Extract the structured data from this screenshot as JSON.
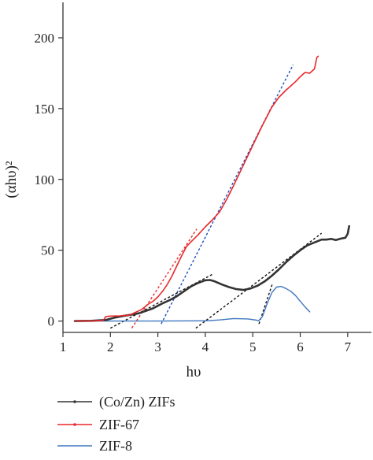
{
  "chart_data": {
    "type": "line",
    "xlabel": "hυ",
    "ylabel": "(αhυ)²",
    "xlim": [
      1,
      7.5
    ],
    "ylim": [
      -8,
      225
    ],
    "xticks": [
      1,
      2,
      3,
      4,
      5,
      6,
      7
    ],
    "yticks": [
      0,
      50,
      100,
      150,
      200
    ],
    "grid": false,
    "legend_position": "bottom-left",
    "series": [
      {
        "name": "(Co/Zn) ZIFs",
        "color": "#333333",
        "x": [
          1.25,
          1.6,
          1.9,
          2.1,
          2.3,
          2.5,
          2.6,
          2.75,
          2.9,
          3.0,
          3.1,
          3.25,
          3.4,
          3.55,
          3.7,
          3.85,
          4.0,
          4.1,
          4.2,
          4.35,
          4.5,
          4.65,
          4.8,
          4.95,
          5.1,
          5.25,
          5.4,
          5.55,
          5.7,
          5.85,
          6.0,
          6.15,
          6.3,
          6.45,
          6.55,
          6.65,
          6.75,
          6.85,
          6.95,
          7.0,
          7.03
        ],
        "y": [
          0,
          0.2,
          0.8,
          2.5,
          3.8,
          4.8,
          5.5,
          7.2,
          9.0,
          10.8,
          12.5,
          14.8,
          17.5,
          21.0,
          24.5,
          27.0,
          28.8,
          29.0,
          28.0,
          25.8,
          24.0,
          22.6,
          22.0,
          23.0,
          25.0,
          28.0,
          32.0,
          36.5,
          41.5,
          46.0,
          50.0,
          53.5,
          55.5,
          57.5,
          57.5,
          58.0,
          57.2,
          58.2,
          58.8,
          61.5,
          67.0
        ]
      },
      {
        "name": "ZIF-67",
        "color": "#e8292c",
        "x": [
          1.25,
          1.6,
          1.85,
          1.9,
          2.0,
          2.2,
          2.4,
          2.55,
          2.65,
          2.8,
          2.9,
          3.0,
          3.1,
          3.2,
          3.3,
          3.4,
          3.5,
          3.6,
          3.7,
          3.85,
          4.0,
          4.15,
          4.3,
          4.45,
          4.6,
          4.8,
          5.0,
          5.2,
          5.4,
          5.55,
          5.7,
          5.8,
          5.9,
          6.0,
          6.1,
          6.2,
          6.3,
          6.35,
          6.38
        ],
        "y": [
          0,
          0,
          0.5,
          3.2,
          3.5,
          3.6,
          4.2,
          6.5,
          8.0,
          12.0,
          14.0,
          17.0,
          21.0,
          26.0,
          32.0,
          39.0,
          46.0,
          52.5,
          56.0,
          61.0,
          66.5,
          71.5,
          77.0,
          86.0,
          96.0,
          110.0,
          124.0,
          138.0,
          151.0,
          158.0,
          163.0,
          166.0,
          169.0,
          172.5,
          175.5,
          175.0,
          178.0,
          186.0,
          187.0
        ]
      },
      {
        "name": "ZIF-8",
        "color": "#3f76c0",
        "x": [
          1.25,
          2.0,
          3.0,
          4.0,
          4.3,
          4.6,
          4.9,
          5.08,
          5.12,
          5.2,
          5.3,
          5.4,
          5.5,
          5.6,
          5.7,
          5.8,
          5.9,
          6.0,
          6.1,
          6.2
        ],
        "y": [
          0,
          0,
          0,
          0.2,
          0.8,
          1.8,
          1.5,
          0.6,
          0.1,
          3.0,
          12.0,
          20.0,
          24.0,
          24.5,
          23.0,
          21.0,
          18.0,
          14.0,
          10.0,
          6.5
        ]
      }
    ],
    "fit_lines": [
      {
        "color": "#e8292c",
        "x": [
          2.45,
          3.82
        ],
        "y": [
          -5,
          65
        ]
      },
      {
        "color": "#1f4fc0",
        "x": [
          3.07,
          5.85
        ],
        "y": [
          -2,
          181
        ]
      },
      {
        "color": "#111111",
        "x": [
          2.0,
          4.15
        ],
        "y": [
          -5,
          33
        ]
      },
      {
        "color": "#111111",
        "x": [
          3.8,
          6.45
        ],
        "y": [
          -5,
          62
        ]
      },
      {
        "color": "#111111",
        "x": [
          5.13,
          5.42
        ],
        "y": [
          -2,
          27
        ]
      }
    ]
  }
}
